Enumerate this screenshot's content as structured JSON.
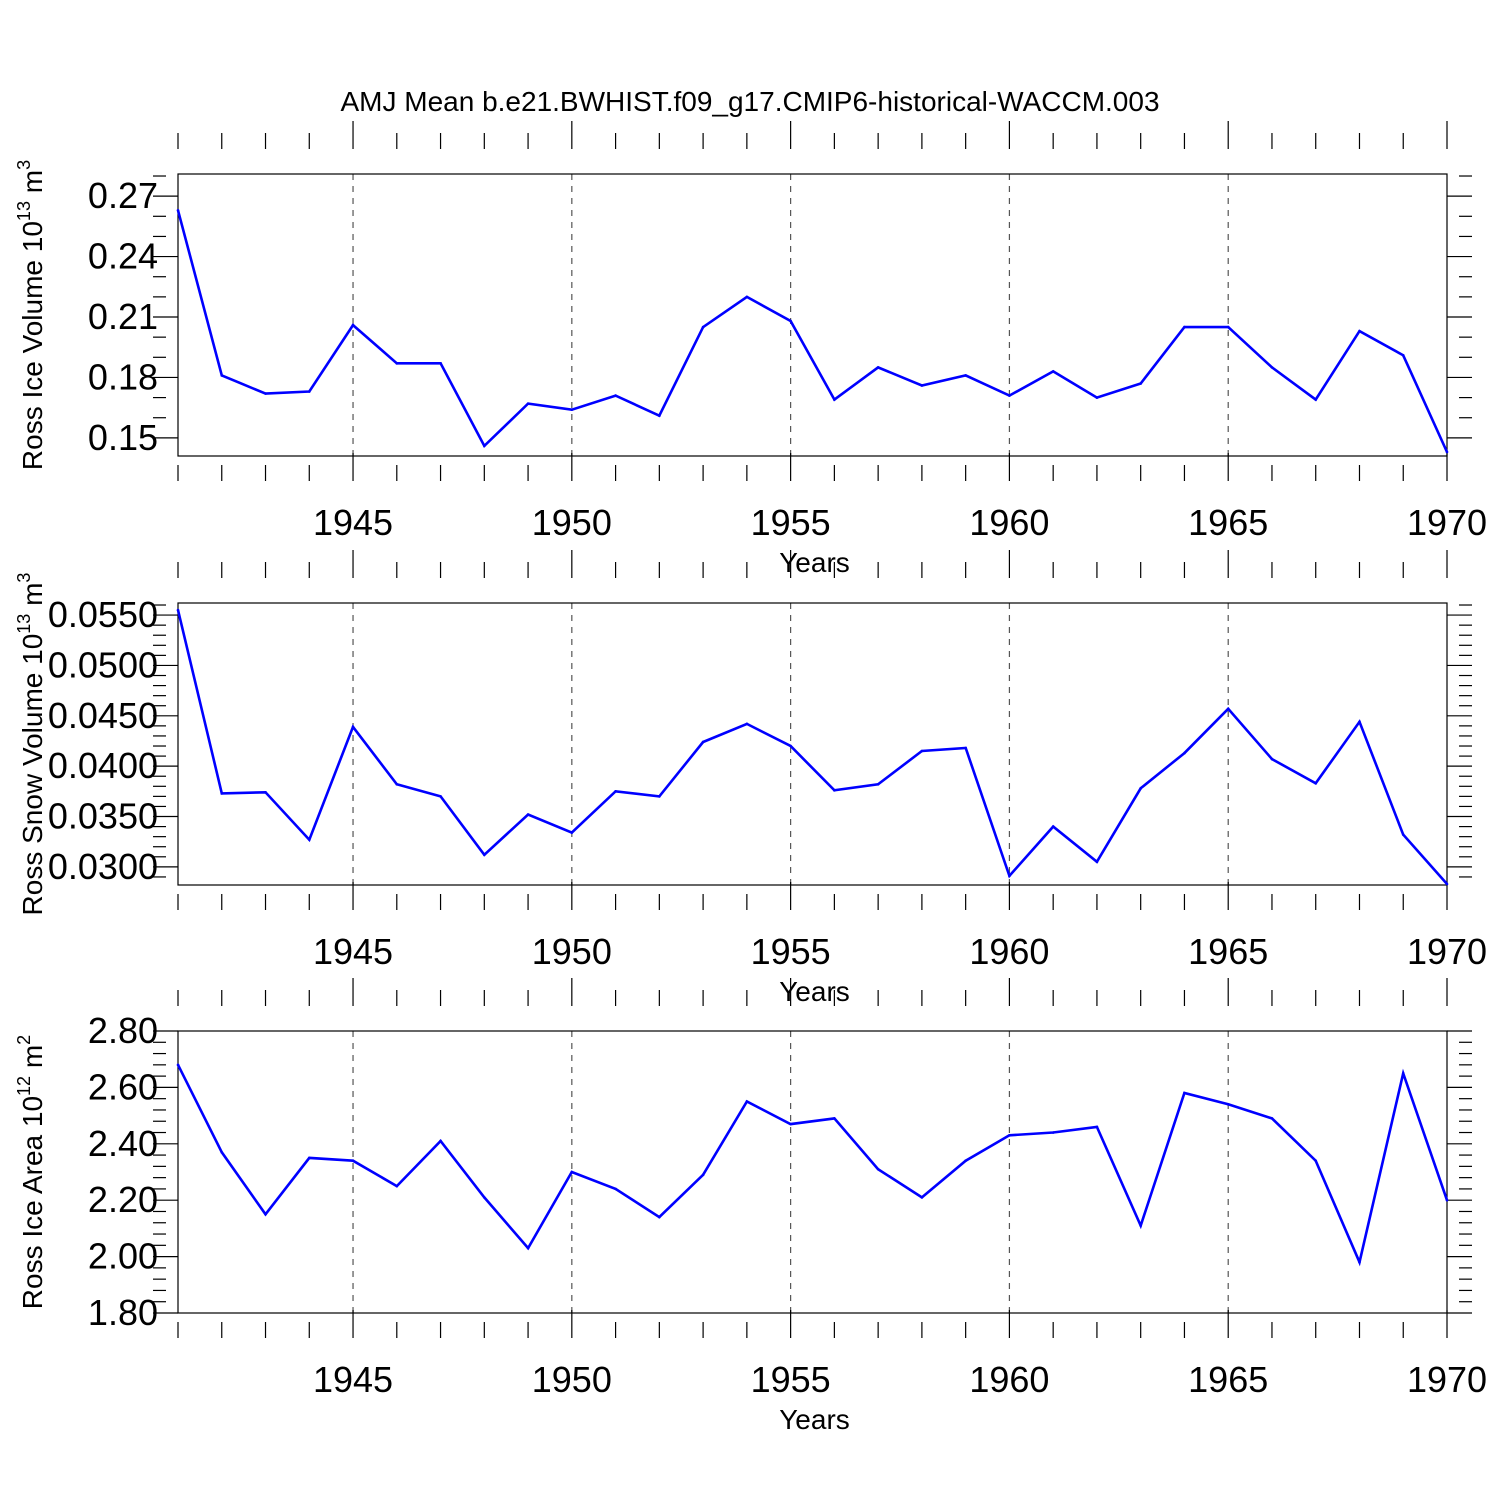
{
  "title": "AMJ Mean b.e21.BWHIST.f09_g17.CMIP6-historical-WACCM.003",
  "colors": {
    "series": "#0000ff",
    "axis": "#000000",
    "grid": "#555555"
  },
  "chart_data": [
    {
      "type": "line",
      "ylabel": "Ross Ice Volume 10",
      "ylabel_sup": "13",
      "ylabel_unit": " m",
      "ylabel_unit_sup": "3",
      "xlabel": "Years",
      "xlim": [
        1941,
        1970
      ],
      "ylim": [
        0.141,
        0.281
      ],
      "yticks": [
        0.15,
        0.18,
        0.21,
        0.24,
        0.27
      ],
      "ytick_labels": [
        "0.15",
        "0.18",
        "0.21",
        "0.24",
        "0.27"
      ],
      "yminor_step": 0.01,
      "xticks": [
        1945,
        1950,
        1955,
        1960,
        1965,
        1970
      ],
      "xtick_labels": [
        "1945",
        "1950",
        "1955",
        "1960",
        "1965",
        "1970"
      ],
      "grid": "vertical dashed at major x ticks",
      "x": [
        1941,
        1942,
        1943,
        1944,
        1945,
        1946,
        1947,
        1948,
        1949,
        1950,
        1951,
        1952,
        1953,
        1954,
        1955,
        1956,
        1957,
        1958,
        1959,
        1960,
        1961,
        1962,
        1963,
        1964,
        1965,
        1966,
        1967,
        1968,
        1969,
        1970
      ],
      "values": [
        0.263,
        0.181,
        0.172,
        0.173,
        0.206,
        0.187,
        0.187,
        0.146,
        0.167,
        0.164,
        0.171,
        0.161,
        0.205,
        0.22,
        0.208,
        0.169,
        0.185,
        0.176,
        0.181,
        0.171,
        0.183,
        0.17,
        0.177,
        0.205,
        0.205,
        0.185,
        0.169,
        0.203,
        0.191,
        0.143
      ]
    },
    {
      "type": "line",
      "ylabel": "Ross Snow Volume 10",
      "ylabel_sup": "13",
      "ylabel_unit": " m",
      "ylabel_unit_sup": "3",
      "xlabel": "Years",
      "xlim": [
        1941,
        1970
      ],
      "ylim": [
        0.0282,
        0.0562
      ],
      "yticks": [
        0.03,
        0.035,
        0.04,
        0.045,
        0.05,
        0.055
      ],
      "ytick_labels": [
        "0.0300",
        "0.0350",
        "0.0400",
        "0.0450",
        "0.0500",
        "0.0550"
      ],
      "yminor_step": 0.001,
      "xticks": [
        1945,
        1950,
        1955,
        1960,
        1965,
        1970
      ],
      "xtick_labels": [
        "1945",
        "1950",
        "1955",
        "1960",
        "1965",
        "1970"
      ],
      "grid": "vertical dashed at major x ticks",
      "x": [
        1941,
        1942,
        1943,
        1944,
        1945,
        1946,
        1947,
        1948,
        1949,
        1950,
        1951,
        1952,
        1953,
        1954,
        1955,
        1956,
        1957,
        1958,
        1959,
        1960,
        1961,
        1962,
        1963,
        1964,
        1965,
        1966,
        1967,
        1968,
        1969,
        1970
      ],
      "values": [
        0.0555,
        0.0373,
        0.0374,
        0.0327,
        0.0439,
        0.0382,
        0.037,
        0.0312,
        0.0352,
        0.0334,
        0.0375,
        0.037,
        0.0424,
        0.0442,
        0.042,
        0.0376,
        0.0382,
        0.0415,
        0.0418,
        0.0291,
        0.034,
        0.0305,
        0.0378,
        0.0413,
        0.0457,
        0.0407,
        0.0383,
        0.0444,
        0.0332,
        0.0283
      ]
    },
    {
      "type": "line",
      "ylabel": "Ross Ice Area 10",
      "ylabel_sup": "12",
      "ylabel_unit": " m",
      "ylabel_unit_sup": "2",
      "xlabel": "Years",
      "xlim": [
        1941,
        1970
      ],
      "ylim": [
        1.8,
        2.8
      ],
      "yticks": [
        1.8,
        2.0,
        2.2,
        2.4,
        2.6,
        2.8
      ],
      "ytick_labels": [
        "1.80",
        "2.00",
        "2.20",
        "2.40",
        "2.60",
        "2.80"
      ],
      "yminor_step": 0.04,
      "xticks": [
        1945,
        1950,
        1955,
        1960,
        1965,
        1970
      ],
      "xtick_labels": [
        "1945",
        "1950",
        "1955",
        "1960",
        "1965",
        "1970"
      ],
      "grid": "vertical dashed at major x ticks",
      "x": [
        1941,
        1942,
        1943,
        1944,
        1945,
        1946,
        1947,
        1948,
        1949,
        1950,
        1951,
        1952,
        1953,
        1954,
        1955,
        1956,
        1957,
        1958,
        1959,
        1960,
        1961,
        1962,
        1963,
        1964,
        1965,
        1966,
        1967,
        1968,
        1969,
        1970
      ],
      "values": [
        2.68,
        2.37,
        2.15,
        2.35,
        2.34,
        2.25,
        2.41,
        2.21,
        2.03,
        2.3,
        2.24,
        2.14,
        2.29,
        2.55,
        2.47,
        2.49,
        2.31,
        2.21,
        2.34,
        2.43,
        2.44,
        2.46,
        2.11,
        2.58,
        2.54,
        2.49,
        2.34,
        1.98,
        2.65,
        2.2
      ]
    }
  ]
}
